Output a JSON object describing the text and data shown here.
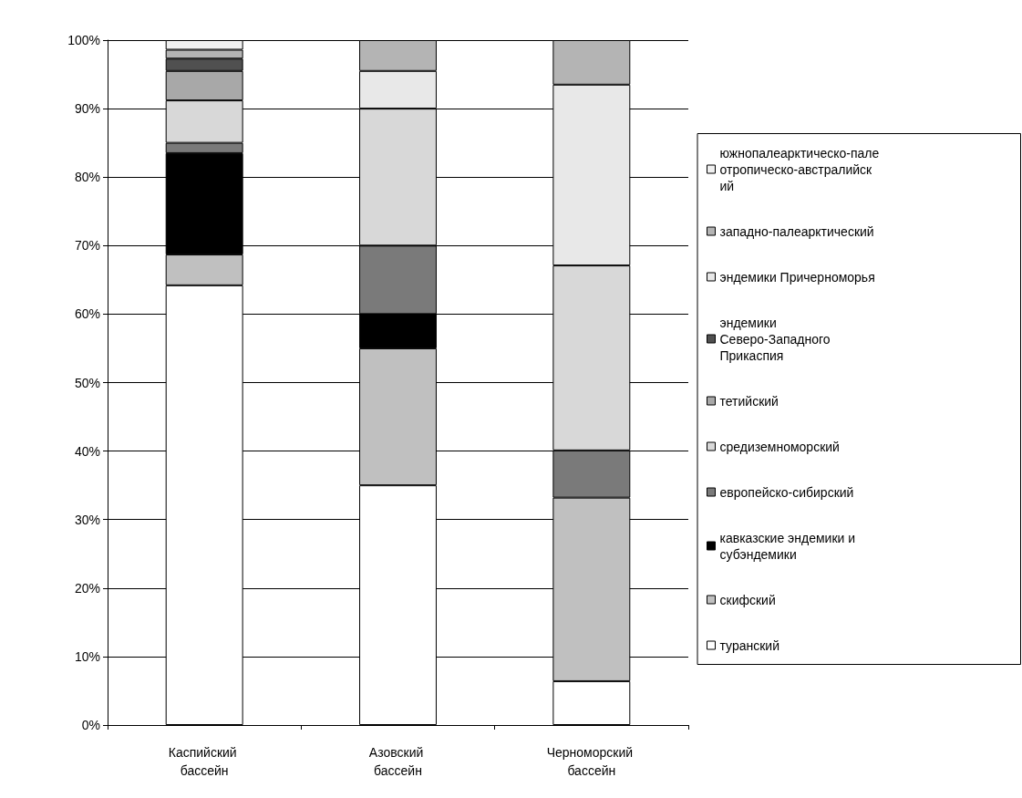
{
  "chart_data": {
    "type": "bar",
    "stacked": true,
    "categories": [
      "Каспийский бассейн",
      "Азовский бассейн",
      "Черноморский бассейн"
    ],
    "series": [
      {
        "name": "туранский",
        "color": "#ffffff",
        "values": [
          64.2,
          35,
          6.4
        ]
      },
      {
        "name": "скифский",
        "color": "#c0c0c0",
        "values": [
          4.5,
          20,
          26.8
        ]
      },
      {
        "name": "кавказские эндемики и субэндемики",
        "color": "#000000",
        "values": [
          14.8,
          5,
          null
        ]
      },
      {
        "name": "европейско-сибирский",
        "color": "#7a7a7a",
        "values": [
          1.5,
          10,
          6.9
        ]
      },
      {
        "name": "средиземноморский",
        "color": "#d8d8d8",
        "values": [
          6.2,
          20,
          27
        ]
      },
      {
        "name": "тетийский",
        "color": "#a8a8a8",
        "values": [
          4.3,
          null,
          null
        ]
      },
      {
        "name": "эндемики Северо-Западного Прикаспия",
        "color": "#505050",
        "values": [
          1.8,
          null,
          null
        ]
      },
      {
        "name": "эндемики Причерноморья",
        "color": "#e8e8e8",
        "values": [
          null,
          5.5,
          26.4
        ]
      },
      {
        "name": "западно-палеарктический",
        "color": "#b4b4b4",
        "values": [
          1.3,
          4.5,
          6.5
        ]
      },
      {
        "name": "южнопалеарктическо-палеотропическо-австралийский",
        "color": "#f0f0f0",
        "values": [
          1.4,
          null,
          null
        ]
      }
    ],
    "ylim": [
      0,
      100
    ],
    "yticks": [
      {
        "value": 0,
        "label": "0%"
      },
      {
        "value": 10,
        "label": "10%"
      },
      {
        "value": 20,
        "label": "20%"
      },
      {
        "value": 30,
        "label": "30%"
      },
      {
        "value": 40,
        "label": "40%"
      },
      {
        "value": 50,
        "label": "50%"
      },
      {
        "value": 60,
        "label": "60%"
      },
      {
        "value": 70,
        "label": "70%"
      },
      {
        "value": 80,
        "label": "80%"
      },
      {
        "value": 90,
        "label": "90%"
      },
      {
        "value": 100,
        "label": "100%"
      }
    ],
    "grid": "y",
    "legend": "right"
  }
}
